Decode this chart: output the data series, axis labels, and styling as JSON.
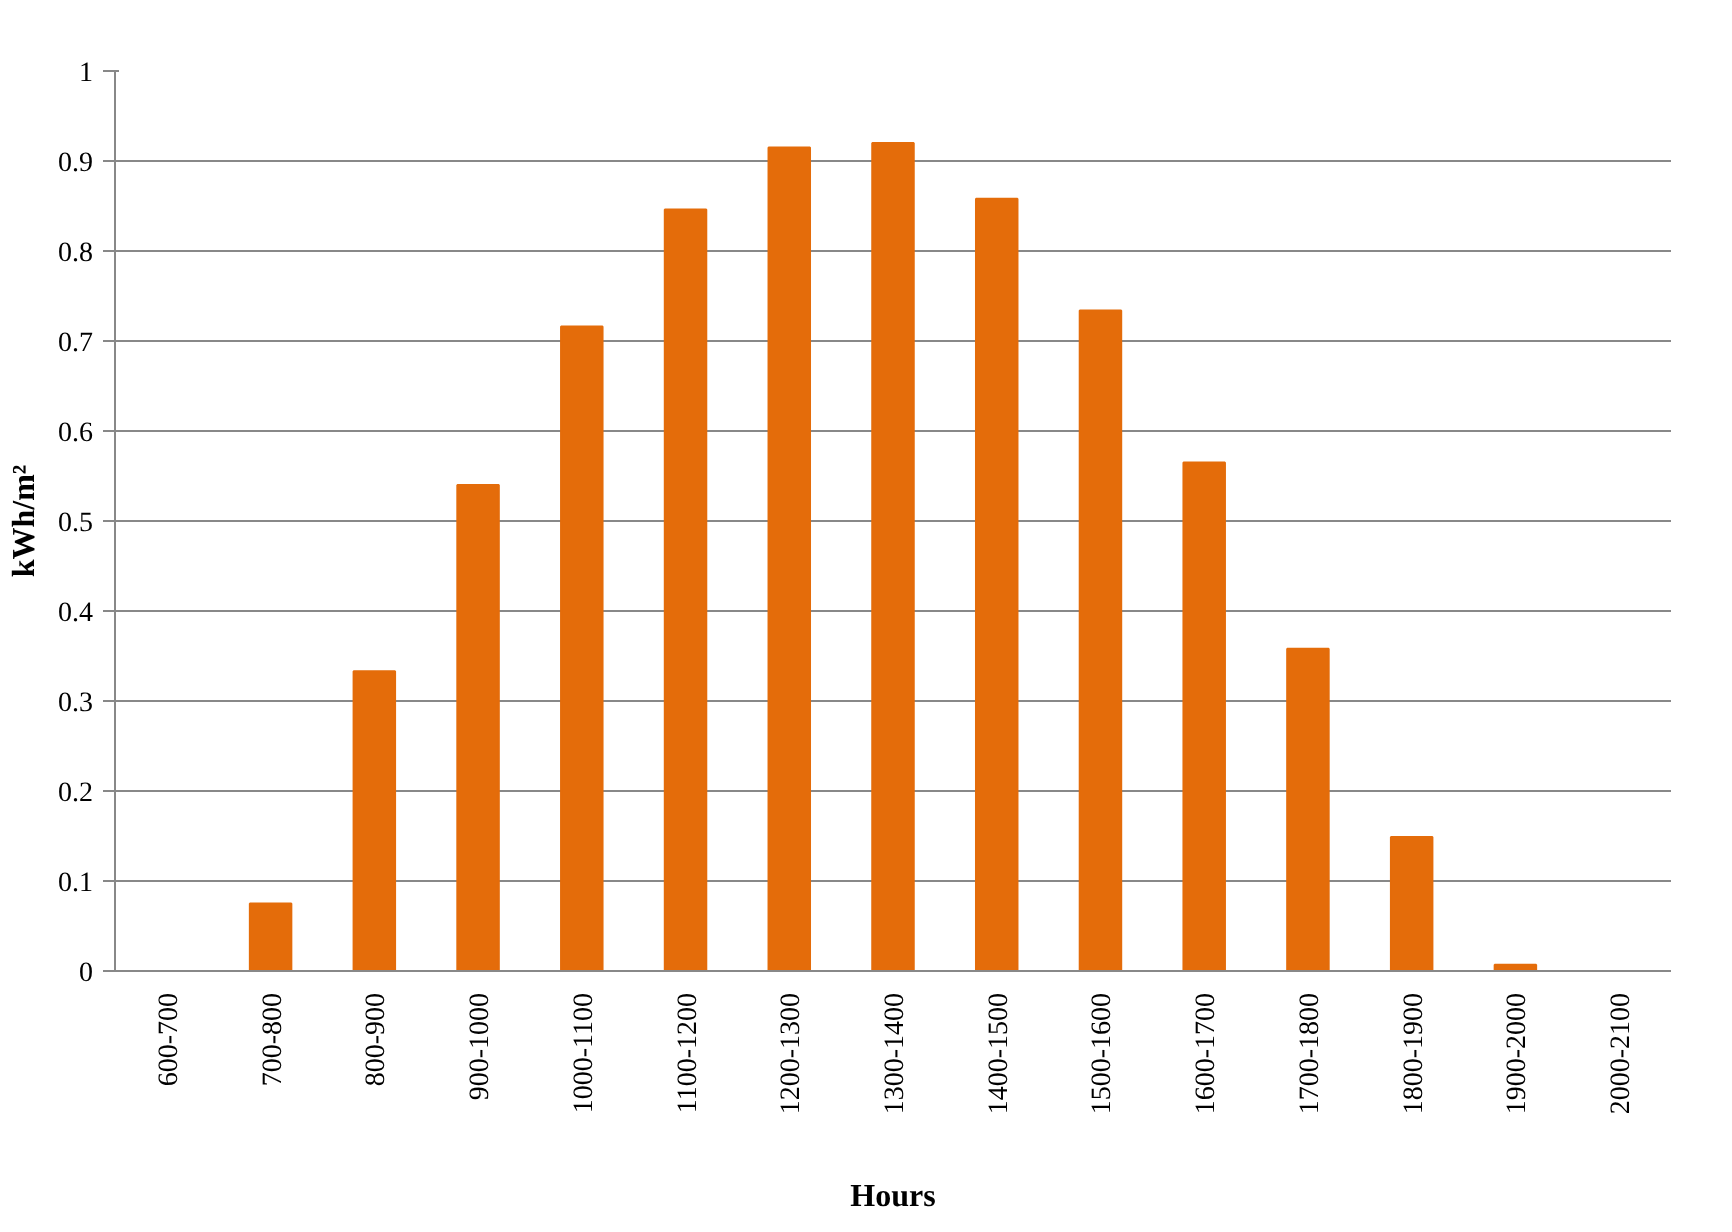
{
  "chart_data": {
    "type": "bar",
    "xlabel": "Hours",
    "ylabel": "kWh/m²",
    "categories": [
      "600-700",
      "700-800",
      "800-900",
      "900-1000",
      "1000-1100",
      "1100-1200",
      "1200-1300",
      "1300-1400",
      "1400-1500",
      "1500-1600",
      "1600-1700",
      "1700-1800",
      "1800-1900",
      "1900-2000",
      "2000-2100"
    ],
    "values": [
      0,
      0.075,
      0.333,
      0.54,
      0.716,
      0.846,
      0.915,
      0.92,
      0.858,
      0.734,
      0.565,
      0.358,
      0.149,
      0.007,
      0
    ],
    "color": "#e46c0a",
    "ylim": [
      0,
      1
    ],
    "yticks": [
      0,
      0.1,
      0.2,
      0.3,
      0.4,
      0.5,
      0.6,
      0.7,
      0.8,
      0.9,
      1
    ],
    "grid": "y"
  }
}
